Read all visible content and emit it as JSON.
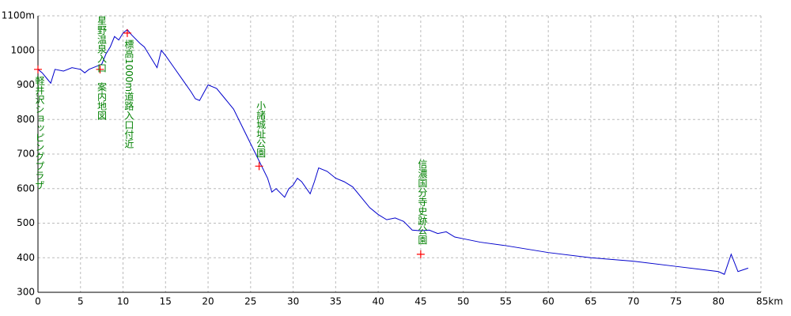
{
  "chart_data": {
    "type": "line",
    "x": [
      0,
      0.5,
      1,
      1.5,
      2,
      3,
      4,
      5,
      5.5,
      6,
      7,
      7.5,
      8,
      8.5,
      9,
      9.5,
      10,
      10.5,
      11,
      12,
      12.5,
      13,
      13.5,
      14,
      14.5,
      15,
      16,
      17,
      18,
      18.5,
      19,
      20,
      21,
      22,
      23,
      24,
      25,
      26,
      27,
      27.5,
      28,
      29,
      29.5,
      30,
      30.5,
      31,
      32,
      32.5,
      33,
      34,
      35,
      36,
      37,
      38,
      39,
      40,
      41,
      42,
      43,
      44,
      45,
      46,
      47,
      48,
      49,
      50,
      52,
      55,
      60,
      65,
      70,
      75,
      80,
      80.7,
      81.5,
      82.3,
      83.5
    ],
    "series": [
      {
        "color": "#0000cc",
        "values": [
          945,
          935,
          920,
          905,
          945,
          940,
          950,
          945,
          935,
          945,
          955,
          960,
          990,
          1010,
          1040,
          1030,
          1050,
          1060,
          1045,
          1020,
          1010,
          990,
          970,
          950,
          1000,
          985,
          950,
          915,
          880,
          860,
          855,
          900,
          890,
          860,
          830,
          780,
          730,
          680,
          630,
          590,
          600,
          575,
          600,
          610,
          630,
          620,
          585,
          620,
          660,
          650,
          630,
          620,
          605,
          575,
          545,
          525,
          510,
          515,
          505,
          480,
          478,
          480,
          470,
          475,
          460,
          455,
          445,
          435,
          415,
          400,
          390,
          375,
          360,
          352,
          410,
          360,
          370
        ]
      }
    ],
    "markers": [
      {
        "x": 0,
        "y": 945,
        "label": "軽井沢ショッピングプラザ"
      },
      {
        "x": 7.3,
        "y": 945,
        "label": "星野温泉入口　案内地図"
      },
      {
        "x": 10.5,
        "y": 1050,
        "label": "標高1000m道路入口付近"
      },
      {
        "x": 26,
        "y": 665,
        "label": "小諸城址公園"
      },
      {
        "x": 45,
        "y": 410,
        "label": "信濃国分寺史跡公園"
      }
    ],
    "marker_color": "#ff0000",
    "xlim": [
      0,
      85
    ],
    "ylim": [
      300,
      1100
    ],
    "xticks": [
      0,
      5,
      10,
      15,
      20,
      25,
      30,
      35,
      40,
      45,
      50,
      55,
      60,
      65,
      70,
      75,
      80,
      {
        "value": 85,
        "label": "85km"
      }
    ],
    "yticks": [
      300,
      400,
      500,
      600,
      700,
      800,
      900,
      1000,
      {
        "value": 1100,
        "label": "1100m"
      }
    ],
    "grid": true
  }
}
